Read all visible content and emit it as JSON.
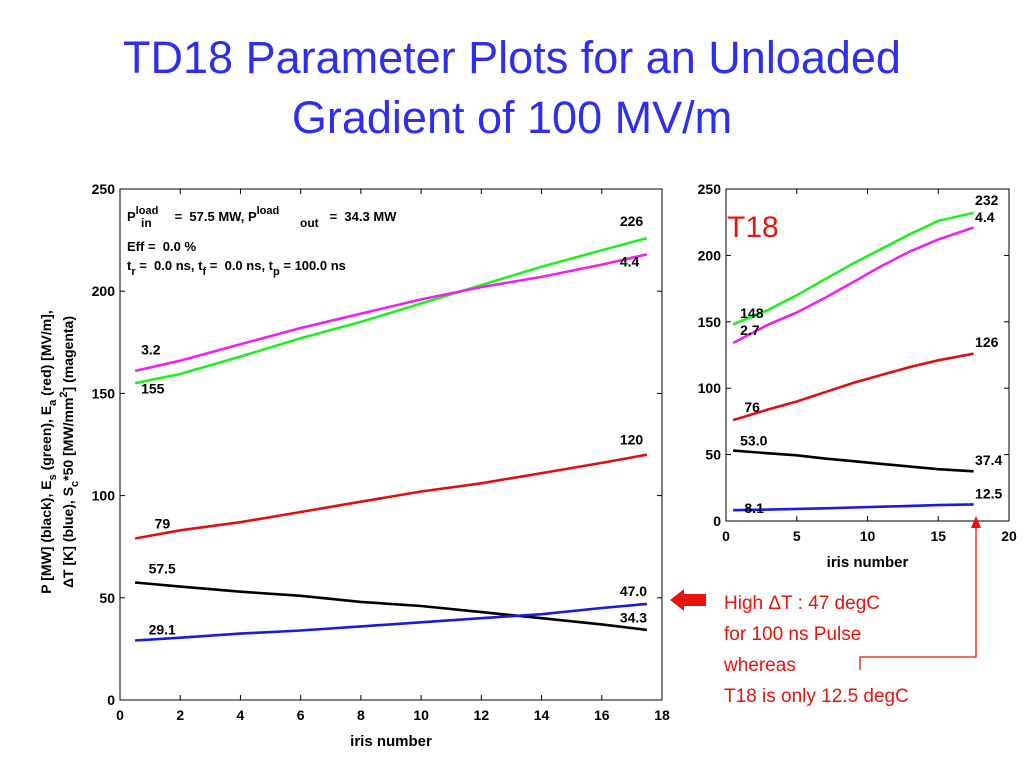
{
  "title": {
    "line1": "TD18 Parameter Plots for an Unloaded",
    "line2": "Gradient of 100 MV/m"
  },
  "colors": {
    "title": "#2e2ef0",
    "black": "#000000",
    "green": "#22ee22",
    "magenta": "#ee22ee",
    "red": "#dd1111",
    "blue": "#1a1ae0",
    "annotation": "#e8130c"
  },
  "left_info": {
    "p_in_main": "P",
    "p_in_sup": "load",
    "p_in_sub": "in",
    "p_in_value": " =  57.5 MW, ",
    "p_out_main": "P",
    "p_out_sup": "load",
    "p_out_sub": "out",
    "p_out_value": " =  34.3 MW",
    "eff": "Eff =  0.0 %",
    "t_r_main": "t",
    "t_r_sub": "r",
    "t_r_value": " =  0.0 ns, ",
    "t_f_main": "t",
    "t_f_sub": "f",
    "t_f_value": " =  0.0 ns, ",
    "t_p_main": "t",
    "t_p_sub": "p",
    "t_p_value": " = 100.0 ns"
  },
  "left_ylabel": {
    "l1a": "P [MW] (black), E",
    "l1b": "s",
    "l1c": " (green), E",
    "l1d": "a",
    "l1e": " (red) [MV/m],",
    "l2a": "ΔT [K] (blue), S",
    "l2b": "c",
    "l2c": "*50 [MW/mm",
    "l2d": "2",
    "l2e": "] (magenta)"
  },
  "t18_label": "T18",
  "annotation": {
    "line1": "High ΔT : 47 degC",
    "line2": "for 100 ns Pulse",
    "line3": "whereas",
    "line4": "T18 is only 12.5 degC"
  },
  "chart_data": [
    {
      "type": "line",
      "xlabel": "iris number",
      "xlim": [
        0,
        18
      ],
      "ylim": [
        0,
        250
      ],
      "xticks": [
        0,
        2,
        4,
        6,
        8,
        10,
        12,
        14,
        16,
        18
      ],
      "yticks": [
        0,
        50,
        100,
        150,
        200,
        250
      ],
      "series": [
        {
          "color": "#22ee22",
          "x": [
            0.5,
            2,
            4,
            6,
            8,
            10,
            12,
            14,
            16,
            17.5
          ],
          "values": [
            155,
            159.5,
            168,
            177,
            185,
            194,
            203,
            212,
            220,
            226
          ]
        },
        {
          "color": "#ee22ee",
          "x": [
            0.5,
            2,
            4,
            6,
            8,
            10,
            12,
            14,
            16,
            17.5
          ],
          "values": [
            161,
            166,
            174,
            182,
            189,
            196,
            202,
            207,
            213,
            218
          ]
        },
        {
          "color": "#dd1111",
          "x": [
            0.5,
            2,
            4,
            6,
            8,
            10,
            12,
            14,
            16,
            17.5
          ],
          "values": [
            79,
            83,
            87,
            92,
            97,
            102,
            106,
            111,
            116,
            120
          ]
        },
        {
          "color": "#000000",
          "x": [
            0.5,
            2,
            4,
            6,
            8,
            10,
            12,
            14,
            16,
            17.5
          ],
          "values": [
            57.5,
            55.5,
            53,
            51,
            48,
            46,
            43,
            40,
            37,
            34.3
          ]
        },
        {
          "color": "#1a1ae0",
          "x": [
            0.5,
            2,
            4,
            6,
            8,
            10,
            12,
            14,
            16,
            17.5
          ],
          "values": [
            29.1,
            30.5,
            32.5,
            34,
            36,
            38,
            40,
            42,
            45,
            47
          ]
        }
      ],
      "data_labels": [
        {
          "text": "226",
          "x": 16.6,
          "y": 232
        },
        {
          "text": "4.4",
          "x": 16.6,
          "y": 212
        },
        {
          "text": "3.2",
          "x": 0.7,
          "y": 169
        },
        {
          "text": "155",
          "x": 0.7,
          "y": 150
        },
        {
          "text": "120",
          "x": 16.6,
          "y": 125
        },
        {
          "text": "79",
          "x": 1.15,
          "y": 84
        },
        {
          "text": "57.5",
          "x": 0.95,
          "y": 62
        },
        {
          "text": "47.0",
          "x": 16.6,
          "y": 51
        },
        {
          "text": "34.3",
          "x": 16.6,
          "y": 38
        },
        {
          "text": "29.1",
          "x": 0.95,
          "y": 32
        }
      ]
    },
    {
      "type": "line",
      "xlabel": "iris number",
      "xlim": [
        0,
        20
      ],
      "ylim": [
        0,
        250
      ],
      "xticks": [
        0,
        5,
        10,
        15,
        20
      ],
      "yticks": [
        0,
        50,
        100,
        150,
        200,
        250
      ],
      "series": [
        {
          "color": "#22ee22",
          "x": [
            0.5,
            3,
            5,
            7,
            9,
            11,
            13,
            15,
            17.5
          ],
          "values": [
            148,
            159,
            170,
            182,
            194,
            205,
            216,
            226,
            232
          ]
        },
        {
          "color": "#ee22ee",
          "x": [
            0.5,
            3,
            5,
            7,
            9,
            11,
            13,
            15,
            17.5
          ],
          "values": [
            134,
            148,
            157,
            168,
            180,
            192,
            203,
            212,
            221
          ]
        },
        {
          "color": "#dd1111",
          "x": [
            0.5,
            3,
            5,
            7,
            9,
            11,
            13,
            15,
            17.5
          ],
          "values": [
            76,
            84,
            90,
            97,
            104,
            110,
            116,
            121,
            126
          ]
        },
        {
          "color": "#000000",
          "x": [
            0.5,
            3,
            5,
            7,
            9,
            11,
            13,
            15,
            17.5
          ],
          "values": [
            53,
            51,
            49.5,
            47,
            45,
            43,
            41,
            39,
            37.4
          ]
        },
        {
          "color": "#1a1ae0",
          "x": [
            0.5,
            3,
            5,
            7,
            9,
            11,
            13,
            15,
            17.5
          ],
          "values": [
            8.1,
            8.6,
            9.1,
            9.6,
            10.2,
            10.8,
            11.4,
            12,
            12.5
          ]
        }
      ],
      "data_labels": [
        {
          "text": "232",
          "x": 17.6,
          "y": 238
        },
        {
          "text": "4.4",
          "x": 17.6,
          "y": 225
        },
        {
          "text": "148",
          "x": 1.0,
          "y": 153
        },
        {
          "text": "2.7",
          "x": 1.0,
          "y": 140
        },
        {
          "text": "126",
          "x": 17.6,
          "y": 131
        },
        {
          "text": "76",
          "x": 1.3,
          "y": 82
        },
        {
          "text": "53.0",
          "x": 1.0,
          "y": 57
        },
        {
          "text": "37.4",
          "x": 17.6,
          "y": 42
        },
        {
          "text": "12.5",
          "x": 17.6,
          "y": 17
        },
        {
          "text": "8.1",
          "x": 1.3,
          "y": 6
        }
      ]
    }
  ]
}
